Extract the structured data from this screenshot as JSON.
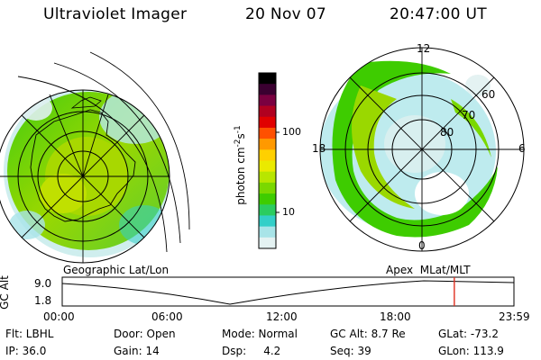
{
  "header": {
    "instrument": "Ultraviolet Imager",
    "date": "20 Nov 07",
    "time": "20:47:00 UT"
  },
  "colorbar": {
    "unit_label": "photon cm",
    "unit_sup": "-2",
    "unit_s": "s",
    "unit_sup2": "-1",
    "ticks": [
      "100",
      "10"
    ],
    "colors": [
      "#000000",
      "#3a0030",
      "#7a0040",
      "#b00020",
      "#e00000",
      "#ff5000",
      "#ff9900",
      "#ffd000",
      "#eaea00",
      "#b8e600",
      "#7ad800",
      "#3ecc00",
      "#2bcc60",
      "#33cfc8",
      "#a8e4e8",
      "#e4f2f2"
    ]
  },
  "geo_map": {
    "label": "Geographic Lat/Lon"
  },
  "apex_map": {
    "label": "Apex  MLat/MLT",
    "lat_labels": [
      "60",
      "70",
      "80"
    ],
    "mlt_labels": [
      "12",
      "18",
      "6",
      "0"
    ]
  },
  "altitude_panel": {
    "axis_label": "GC Alt",
    "y_ticks": [
      "9.0",
      "1.8"
    ],
    "x_ticks": [
      "00:00",
      "06:00",
      "12:00",
      "18:00",
      "23:59"
    ],
    "current_time_fraction": 0.868
  },
  "info": {
    "filter": "Flt: LBHL",
    "ip": "IP: 36.0",
    "door": "Door: Open",
    "gain": "Gain: 14",
    "mode": "Mode: Normal",
    "dsp": "Dsp:     4.2",
    "gc_alt": "GC Alt: 8.7 Re",
    "seq": "Seq: 39",
    "glat": "GLat: -73.2",
    "glon": "GLon: 113.9"
  }
}
